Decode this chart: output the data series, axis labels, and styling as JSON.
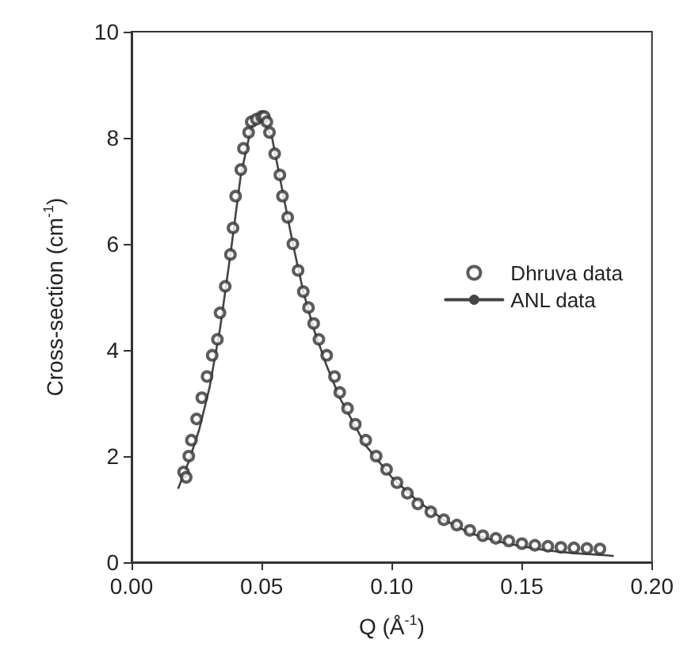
{
  "chart_data": {
    "type": "scatter",
    "xlabel": "Q (Å$^{-1}$)",
    "ylabel": "Cross-section (cm$^{-1}$)",
    "xlim": [
      0,
      0.2
    ],
    "ylim": [
      0,
      10
    ],
    "xticks": [
      {
        "value": 0,
        "label": "0.00"
      },
      {
        "value": 0.05,
        "label": "0.05"
      },
      {
        "value": 0.1,
        "label": "0.10"
      },
      {
        "value": 0.15,
        "label": "0.15"
      },
      {
        "value": 0.2,
        "label": "0.20"
      }
    ],
    "yticks": [
      0,
      2,
      4,
      6,
      8,
      10
    ],
    "grid": false,
    "legend": "right",
    "marker": "circle",
    "series": [
      {
        "name": "Dhruva data",
        "color": "#333333",
        "x": [
          0.02,
          0.021,
          0.022,
          0.023,
          0.025,
          0.027,
          0.029,
          0.031,
          0.033,
          0.034,
          0.036,
          0.038,
          0.039,
          0.04,
          0.042,
          0.043,
          0.045,
          0.046,
          0.048,
          0.05,
          0.051,
          0.052,
          0.053,
          0.055,
          0.057,
          0.058,
          0.06,
          0.062,
          0.064,
          0.066,
          0.068,
          0.07,
          0.072,
          0.075,
          0.078,
          0.08,
          0.083,
          0.086,
          0.09,
          0.094,
          0.098,
          0.102,
          0.106,
          0.11,
          0.115,
          0.12,
          0.125,
          0.13,
          0.135,
          0.14,
          0.145,
          0.15,
          0.155,
          0.16,
          0.165,
          0.17,
          0.175,
          0.18
        ],
        "values": [
          1.7,
          1.6,
          2.0,
          2.3,
          2.7,
          3.1,
          3.5,
          3.9,
          4.2,
          4.7,
          5.2,
          5.8,
          6.3,
          6.9,
          7.4,
          7.8,
          8.1,
          8.3,
          8.35,
          8.4,
          8.4,
          8.3,
          8.1,
          7.7,
          7.3,
          6.9,
          6.5,
          6.0,
          5.5,
          5.1,
          4.8,
          4.5,
          4.2,
          3.9,
          3.5,
          3.2,
          2.9,
          2.6,
          2.3,
          2.0,
          1.75,
          1.5,
          1.3,
          1.1,
          0.95,
          0.8,
          0.7,
          0.6,
          0.5,
          0.45,
          0.4,
          0.35,
          0.32,
          0.3,
          0.28,
          0.27,
          0.26,
          0.25
        ]
      },
      {
        "name": "ANL data",
        "type": "line",
        "color": "#444444",
        "line_style": "solid",
        "marker": "none",
        "x": [
          0.018,
          0.022,
          0.026,
          0.03,
          0.034,
          0.038,
          0.042,
          0.046,
          0.05,
          0.054,
          0.058,
          0.062,
          0.066,
          0.07,
          0.075,
          0.08,
          0.09,
          0.1,
          0.11,
          0.12,
          0.13,
          0.14,
          0.15,
          0.16,
          0.17,
          0.18,
          0.185
        ],
        "values": [
          1.4,
          1.9,
          2.5,
          3.3,
          4.4,
          5.8,
          7.3,
          8.2,
          8.4,
          8.0,
          7.0,
          6.0,
          5.1,
          4.4,
          3.7,
          3.1,
          2.2,
          1.6,
          1.15,
          0.8,
          0.55,
          0.4,
          0.3,
          0.22,
          0.17,
          0.14,
          0.12
        ]
      }
    ]
  }
}
